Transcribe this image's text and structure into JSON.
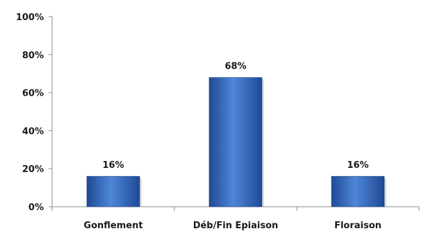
{
  "chart_data": {
    "type": "bar",
    "title": "",
    "xlabel": "",
    "ylabel": "",
    "categories": [
      "Gonflement",
      "Déb/Fin Epiaison",
      "Floraison"
    ],
    "values": [
      16,
      68,
      16
    ],
    "data_labels": [
      "16%",
      "68%",
      "16%"
    ],
    "ylim": [
      0,
      100
    ],
    "yticks": [
      0,
      20,
      40,
      60,
      80,
      100
    ],
    "ytick_labels": [
      "0%",
      "20%",
      "40%",
      "60%",
      "80%",
      "100%"
    ],
    "grid": false,
    "legend": "none",
    "bar_color": "#2f63b8"
  }
}
